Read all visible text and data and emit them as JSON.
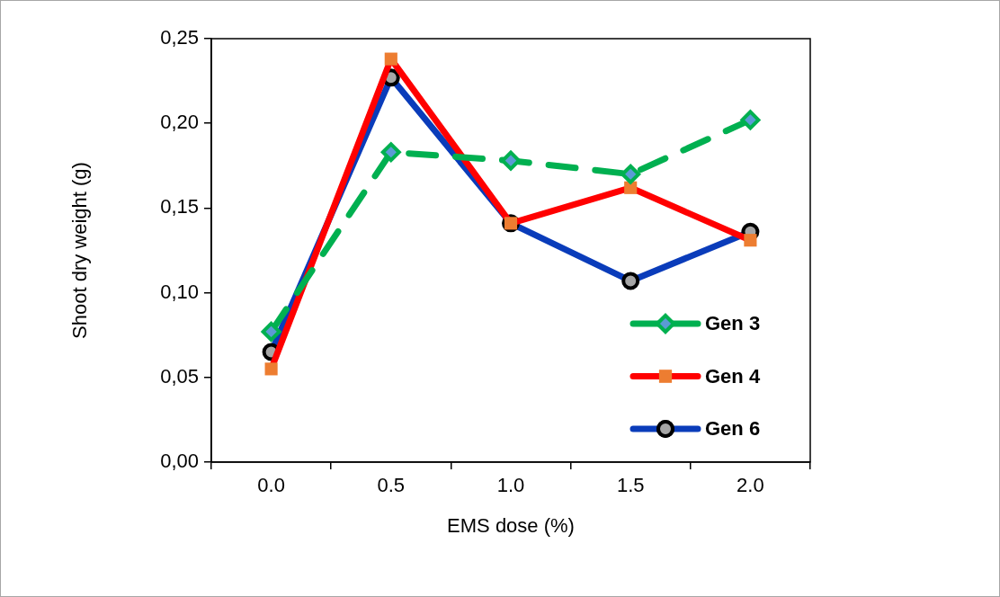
{
  "chart_data": {
    "type": "line",
    "xlabel": "EMS dose (%)",
    "ylabel": "Shoot dry weight (g)",
    "categories": [
      "0.0",
      "0.5",
      "1.0",
      "1.5",
      "2.0"
    ],
    "series": [
      {
        "name": "Gen 3",
        "color": "#00b050",
        "values": [
          0.077,
          0.183,
          0.178,
          0.17,
          0.202
        ],
        "marker": "diamond",
        "line_style": "dashed"
      },
      {
        "name": "Gen 4",
        "color": "#ff0000",
        "values": [
          0.055,
          0.238,
          0.141,
          0.162,
          0.131
        ],
        "marker": "square",
        "line_style": "solid"
      },
      {
        "name": "Gen 6",
        "color": "#0a3cba",
        "values": [
          0.065,
          0.227,
          0.141,
          0.107,
          0.136
        ],
        "marker": "circle",
        "line_style": "solid"
      }
    ],
    "ylim": [
      0,
      0.25
    ],
    "yticks": [
      {
        "value": 0,
        "label": "0,00"
      },
      {
        "value": 0.05,
        "label": "0,05"
      },
      {
        "value": 0.1,
        "label": "0,10"
      },
      {
        "value": 0.15,
        "label": "0,15"
      },
      {
        "value": 0.2,
        "label": "0,20"
      },
      {
        "value": 0.25,
        "label": "0,25"
      }
    ],
    "grid": false,
    "legend": "right"
  }
}
